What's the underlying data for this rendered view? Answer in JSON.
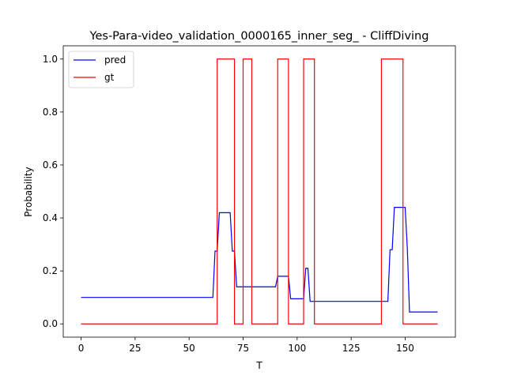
{
  "chart_data": {
    "type": "line",
    "title": "Yes-Para-video_validation_0000165_inner_seg_ - CliffDiving",
    "xlabel": "T",
    "ylabel": "Probability",
    "xlim": [
      -8.25,
      173.25
    ],
    "ylim": [
      -0.05,
      1.05
    ],
    "xticks": [
      0,
      25,
      50,
      75,
      100,
      125,
      150
    ],
    "yticks": [
      0.0,
      0.2,
      0.4,
      0.6,
      0.8,
      1.0
    ],
    "xtick_labels": [
      "0",
      "25",
      "50",
      "75",
      "100",
      "125",
      "150"
    ],
    "ytick_labels": [
      "0.0",
      "0.2",
      "0.4",
      "0.6",
      "0.8",
      "1.0"
    ],
    "legend_position": "top-left",
    "series": [
      {
        "name": "pred",
        "color": "#0000ff",
        "step": false,
        "x": [
          0,
          61,
          62,
          63,
          64,
          65,
          69,
          70,
          71,
          72,
          90,
          91,
          96,
          97,
          103,
          104,
          105,
          106,
          107,
          142,
          143,
          144,
          145,
          149,
          150,
          151,
          152,
          165
        ],
        "y": [
          0.1,
          0.1,
          0.275,
          0.275,
          0.42,
          0.42,
          0.42,
          0.275,
          0.275,
          0.14,
          0.14,
          0.18,
          0.18,
          0.095,
          0.095,
          0.21,
          0.21,
          0.085,
          0.085,
          0.085,
          0.28,
          0.28,
          0.44,
          0.44,
          0.44,
          0.285,
          0.045,
          0.045
        ]
      },
      {
        "name": "gt",
        "color": "#ff0000",
        "step": true,
        "x": [
          0,
          63,
          71,
          75,
          79,
          91,
          96,
          103,
          108,
          139,
          149,
          165
        ],
        "y": [
          0,
          1,
          0,
          1,
          0,
          1,
          0,
          1,
          0,
          1,
          0,
          0
        ]
      }
    ]
  }
}
